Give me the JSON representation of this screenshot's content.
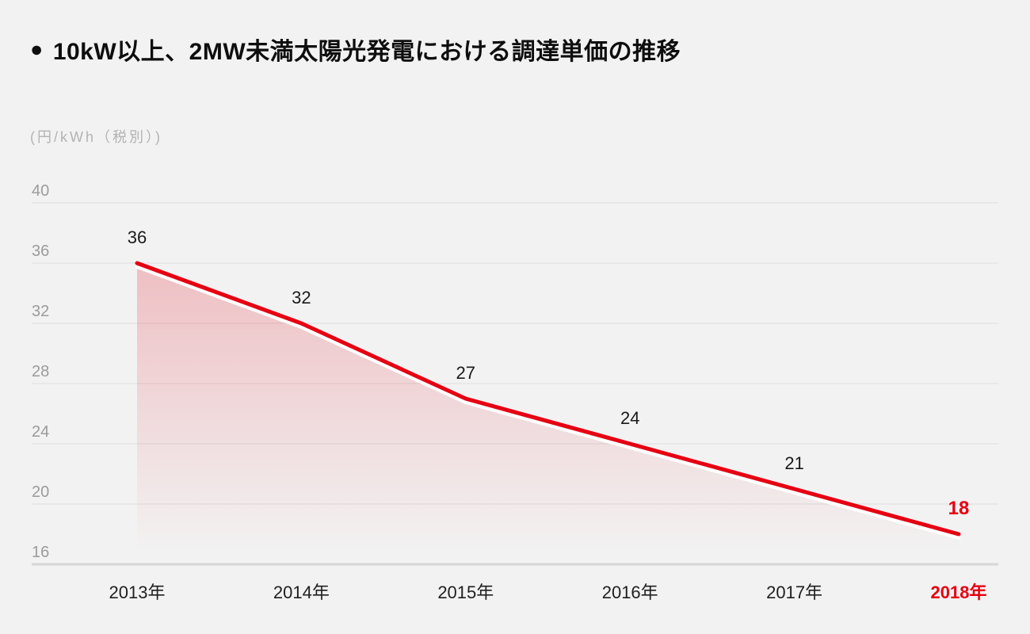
{
  "header": {
    "bullet": "●",
    "title": "10kW以上、2MW未満太陽光発電における調達単価の推移"
  },
  "chart_data": {
    "type": "area",
    "title": "10kW以上、2MW未満太陽光発電における調達単価の推移",
    "unit_label": "(円/kWh（税別）)",
    "xlabel": "",
    "ylabel": "円/kWh（税別）",
    "categories": [
      "2013年",
      "2014年",
      "2015年",
      "2016年",
      "2017年",
      "2018年"
    ],
    "values": [
      36,
      32,
      27,
      24,
      21,
      18
    ],
    "yticks": [
      40,
      36,
      32,
      28,
      24,
      20,
      16
    ],
    "ylim": [
      16,
      40
    ],
    "grid": true,
    "legend": false,
    "highlight_last_index": 5,
    "colors": {
      "background": "#f2f2f2",
      "line": "#e60012",
      "line_underlay": "#ffffff",
      "area_top": "rgba(224,0,18,0.21)",
      "area_bottom": "rgba(224,0,18,0)",
      "gridline": "#dedede",
      "axis_line": "#d6d6d6",
      "tick_label": "#9b9b9b",
      "x_label": "#1f1f1f",
      "data_label": "#1a1a1a",
      "highlight": "#e60012",
      "title_color": "#0e0e0e",
      "unit_color": "#b3b3b3"
    }
  }
}
